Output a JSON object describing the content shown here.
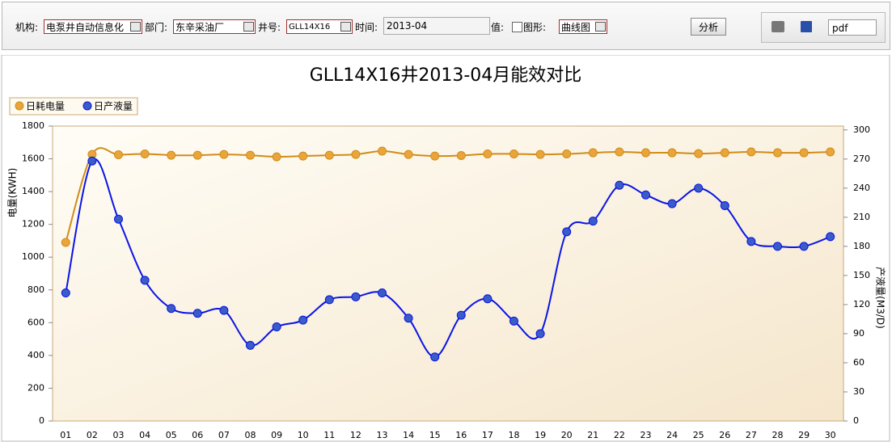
{
  "toolbar": {
    "org_label": "机构:",
    "org_value": "电泵井自动信息化",
    "dept_label": "部门:",
    "dept_value": "东辛采油厂",
    "well_label": "井号:",
    "well_value": "GLL14X16",
    "time_label": "时间:",
    "time_value": "2013-04",
    "value_label": "值:",
    "graph_label": "图形:",
    "graph_value": "曲线图",
    "analyze_button": "分析",
    "export_format": "pdf"
  },
  "chart_data": {
    "type": "line",
    "title": "GLL14X16井2013-04月能效对比",
    "categories": [
      "01",
      "02",
      "03",
      "04",
      "05",
      "06",
      "07",
      "08",
      "09",
      "10",
      "11",
      "12",
      "13",
      "14",
      "15",
      "16",
      "17",
      "18",
      "19",
      "20",
      "21",
      "22",
      "23",
      "24",
      "25",
      "26",
      "27",
      "28",
      "29",
      "30"
    ],
    "series": [
      {
        "name": "日耗电量",
        "color": "#d08c1a",
        "marker_color": "#eaa53a",
        "values": [
          1090,
          1627,
          1625,
          1630,
          1622,
          1622,
          1627,
          1622,
          1612,
          1617,
          1622,
          1627,
          1647,
          1627,
          1617,
          1620,
          1630,
          1630,
          1627,
          1630,
          1637,
          1642,
          1637,
          1637,
          1632,
          1637,
          1642,
          1637,
          1637,
          1642
        ]
      },
      {
        "name": "日产液量",
        "color": "#0a14e6",
        "marker_color": "#3a5cc8",
        "axis": "y2",
        "values": [
          132,
          268,
          208,
          145,
          116,
          111,
          114,
          78,
          97,
          104,
          125,
          128,
          132,
          106,
          66,
          109,
          126,
          103,
          90,
          195,
          206,
          243,
          233,
          224,
          240,
          222,
          185,
          180,
          180,
          190
        ]
      }
    ],
    "ylabel": "电量(KWH)",
    "y2label": "产液量(M3/D)",
    "ylim": [
      0,
      1800
    ],
    "yticks": [
      0,
      200,
      400,
      600,
      800,
      1000,
      1200,
      1400,
      1600,
      1800
    ],
    "y2lim": [
      0,
      304
    ],
    "y2ticks": [
      0,
      30,
      60,
      90,
      120,
      150,
      180,
      210,
      240,
      270,
      300
    ],
    "smooth": true,
    "legend": "top-left"
  }
}
